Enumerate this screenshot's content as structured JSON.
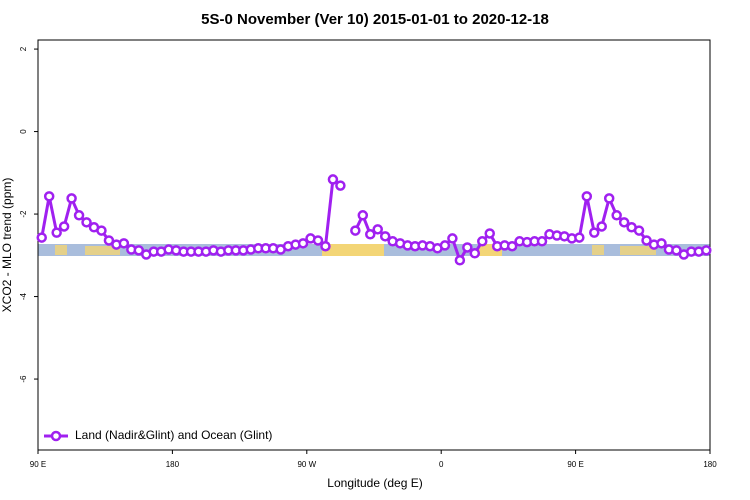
{
  "chart_data": {
    "type": "line",
    "title": "5S-0 November (Ver 10)   2015-01-01 to 2020-12-18",
    "x_label": "Longitude (deg E)",
    "y_label": "XCO2 - MLO trend (ppm)",
    "x": [
      92.5,
      97.5,
      102.5,
      107.5,
      112.5,
      117.5,
      122.5,
      127.5,
      132.5,
      137.5,
      142.5,
      147.5,
      152.5,
      157.5,
      162.5,
      167.5,
      172.5,
      177.5,
      182.5,
      187.5,
      192.5,
      197.5,
      202.5,
      207.5,
      212.5,
      217.5,
      222.5,
      227.5,
      232.5,
      237.5,
      242.5,
      247.5,
      252.5,
      257.5,
      262.5,
      267.5,
      272.5,
      277.5,
      282.5,
      287.5,
      292.5,
      297.5,
      302.5,
      307.5,
      312.5,
      317.5,
      322.5,
      327.5,
      332.5,
      337.5,
      342.5,
      347.5,
      352.5,
      357.5,
      362.5,
      367.5,
      372.5,
      377.5,
      382.5,
      387.5,
      392.5,
      397.5,
      402.5,
      407.5,
      412.5,
      417.5,
      422.5,
      427.5,
      432.5,
      437.5,
      442.5,
      447.5,
      452.5,
      457.5,
      462.5,
      467.5,
      472.5,
      477.5,
      482.5,
      487.5,
      492.5,
      497.5,
      502.5,
      507.5,
      512.5,
      517.5,
      522.5,
      527.5,
      532.5,
      537.5
    ],
    "series": [
      {
        "name": "Land (Nadir&Glint) and Ocean (Glint)",
        "color": "#a020f0",
        "values": [
          -2.57,
          -1.57,
          -2.45,
          -2.3,
          -1.62,
          -2.03,
          -2.2,
          -2.32,
          -2.4,
          -2.64,
          -2.74,
          -2.71,
          -2.86,
          -2.88,
          -2.98,
          -2.91,
          -2.91,
          -2.86,
          -2.88,
          -2.91,
          -2.91,
          -2.91,
          -2.91,
          -2.88,
          -2.91,
          -2.88,
          -2.88,
          -2.88,
          -2.86,
          -2.83,
          -2.83,
          -2.83,
          -2.86,
          -2.78,
          -2.74,
          -2.71,
          -2.59,
          -2.64,
          -2.78,
          -1.16,
          -1.31,
          null,
          -2.4,
          -2.03,
          -2.49,
          -2.37,
          -2.54,
          -2.66,
          -2.71,
          -2.76,
          -2.78,
          -2.76,
          -2.78,
          -2.83,
          -2.76,
          -2.59,
          -3.12,
          -2.81,
          -2.95,
          -2.66,
          -2.47,
          -2.78,
          -2.76,
          -2.78,
          -2.66,
          -2.68,
          -2.66,
          -2.66,
          -2.49,
          -2.52,
          -2.54,
          -2.59,
          -2.57,
          -1.57,
          -2.45,
          -2.3,
          -1.62,
          -2.03,
          -2.2,
          -2.32,
          -2.4,
          -2.64,
          -2.74,
          -2.71,
          -2.86,
          -2.88,
          -2.98,
          -2.91,
          -2.91,
          -2.88
        ]
      }
    ],
    "xlim": [
      90,
      540
    ],
    "xticks": [
      {
        "value": 90,
        "label": "90 E"
      },
      180,
      {
        "value": 270,
        "label": "90 W"
      },
      {
        "value": 360,
        "label": "0"
      },
      {
        "value": 450,
        "label": "90 E"
      },
      {
        "value": 540,
        "label": "180"
      }
    ],
    "ylim": [
      -7.72,
      2.22
    ],
    "yticks": [
      2,
      0,
      -2,
      -4,
      -6
    ],
    "legend": "bottomleft"
  }
}
